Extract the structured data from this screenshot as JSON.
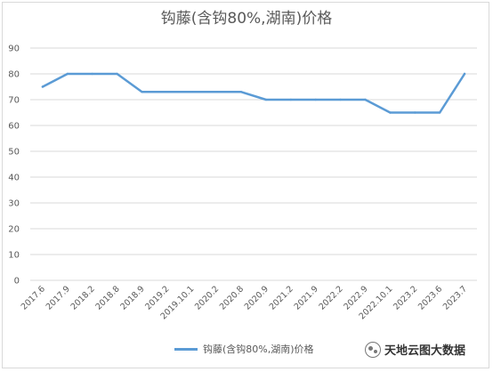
{
  "chart_data": {
    "type": "line",
    "title": "钩藤(含钩80%,湖南)价格",
    "xlabel": "",
    "ylabel": "",
    "ylim": [
      0,
      90
    ],
    "yticks": [
      0,
      10,
      20,
      30,
      40,
      50,
      60,
      70,
      80,
      90
    ],
    "grid": true,
    "legend_position": "bottom",
    "categories": [
      "2017.6",
      "2017.9",
      "2018.2",
      "2018.8",
      "2018.9",
      "2019.2",
      "2019.10.1",
      "2020.2",
      "2020.8",
      "2020.9",
      "2021.2",
      "2021.9",
      "2022.2",
      "2022.9",
      "2022.10.1",
      "2023.2",
      "2023.6",
      "2023.7"
    ],
    "series": [
      {
        "name": "钩藤(含钩80%,湖南)价格",
        "color": "#5b9bd5",
        "values": [
          75,
          80,
          80,
          80,
          73,
          73,
          73,
          73,
          73,
          70,
          70,
          70,
          70,
          70,
          65,
          65,
          65,
          80
        ]
      }
    ]
  },
  "watermark": {
    "text": "天地云图大数据",
    "icon": "wechat-icon"
  }
}
